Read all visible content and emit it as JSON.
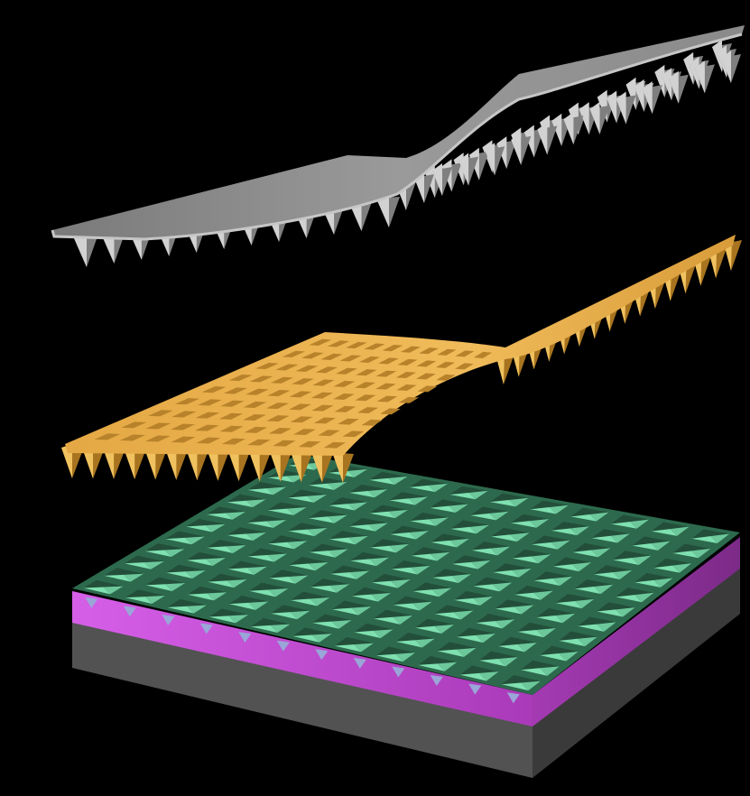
{
  "figure": {
    "background": "#000000",
    "layers": [
      {
        "id": "silicon-mold",
        "colors": {
          "top": "#8e8e8e",
          "edge": "#bdbdbd",
          "spike_light": "#d2d2d2",
          "spike_dark": "#7f7f7f"
        }
      },
      {
        "id": "gold-film",
        "colors": {
          "top": "#e9b04e",
          "well": "#b7822a",
          "spike_light": "#f0c25f",
          "spike_dark": "#a8741f"
        }
      },
      {
        "id": "device-stack",
        "colors": {
          "top": "#2e6a4e",
          "well": "#234f3a",
          "pyramid": "#7fe0b0",
          "magenta": "#c04bd0",
          "magenta_light": "#e07cf2",
          "base": "#5a5a5a",
          "base_dark": "#3c3c3c"
        },
        "grid": {
          "rows": 11,
          "cols": 11
        }
      }
    ]
  }
}
